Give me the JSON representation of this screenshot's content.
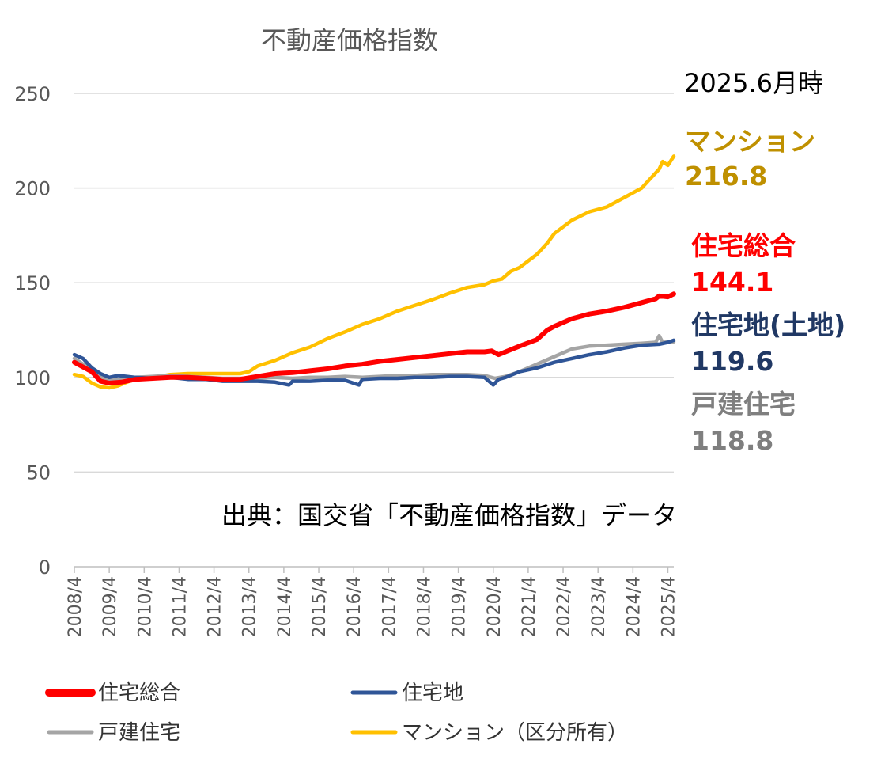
{
  "chart_data": {
    "type": "line",
    "title": "不動産価格指数",
    "ylim": [
      0,
      250
    ],
    "yticks": [
      0,
      50,
      100,
      150,
      200,
      250
    ],
    "x_tick_labels": [
      "2008/4",
      "2009/4",
      "2010/4",
      "2011/4",
      "2012/4",
      "2013/4",
      "2014/4",
      "2015/4",
      "2016/4",
      "2017/4",
      "2018/4",
      "2019/4",
      "2020/4",
      "2021/4",
      "2022/4",
      "2023/4",
      "2024/4",
      "2025/4"
    ],
    "x_range": [
      "2008/4",
      "2025/6"
    ],
    "grid": "horizontal",
    "series": [
      {
        "key": "sogo",
        "name": "住宅総合",
        "color": "#ff0000",
        "points": [
          [
            2008.25,
            108
          ],
          [
            2008.75,
            103
          ],
          [
            2009.0,
            98
          ],
          [
            2009.25,
            97
          ],
          [
            2009.6,
            97.5
          ],
          [
            2010.0,
            99
          ],
          [
            2010.5,
            99.5
          ],
          [
            2011.0,
            100
          ],
          [
            2011.5,
            100
          ],
          [
            2012.0,
            99.5
          ],
          [
            2012.5,
            99
          ],
          [
            2013.0,
            99
          ],
          [
            2013.5,
            100.5
          ],
          [
            2014.0,
            102
          ],
          [
            2014.5,
            102.5
          ],
          [
            2015.0,
            103.5
          ],
          [
            2015.5,
            104.5
          ],
          [
            2016.0,
            106
          ],
          [
            2016.5,
            107
          ],
          [
            2017.0,
            108.5
          ],
          [
            2017.5,
            109.5
          ],
          [
            2018.0,
            110.5
          ],
          [
            2018.5,
            111.5
          ],
          [
            2019.0,
            112.5
          ],
          [
            2019.5,
            113.5
          ],
          [
            2020.0,
            113.5
          ],
          [
            2020.2,
            114
          ],
          [
            2020.4,
            112
          ],
          [
            2020.6,
            113.5
          ],
          [
            2021.0,
            116.5
          ],
          [
            2021.5,
            120
          ],
          [
            2021.8,
            125
          ],
          [
            2022.0,
            127
          ],
          [
            2022.5,
            131
          ],
          [
            2023.0,
            133.5
          ],
          [
            2023.5,
            135
          ],
          [
            2024.0,
            137
          ],
          [
            2024.5,
            139.5
          ],
          [
            2024.9,
            141.5
          ],
          [
            2025.0,
            143
          ],
          [
            2025.25,
            142.5
          ],
          [
            2025.42,
            144.1
          ]
        ]
      },
      {
        "key": "tochi",
        "name": "住宅地",
        "color": "#2f5597",
        "points": [
          [
            2008.25,
            112
          ],
          [
            2008.5,
            110
          ],
          [
            2008.75,
            105
          ],
          [
            2009.0,
            102
          ],
          [
            2009.25,
            100
          ],
          [
            2009.5,
            101
          ],
          [
            2010.0,
            100
          ],
          [
            2010.5,
            99.5
          ],
          [
            2011.0,
            100
          ],
          [
            2011.5,
            99
          ],
          [
            2012.0,
            99
          ],
          [
            2012.5,
            98
          ],
          [
            2013.0,
            98
          ],
          [
            2013.5,
            98
          ],
          [
            2014.0,
            97.5
          ],
          [
            2014.4,
            96
          ],
          [
            2014.5,
            98
          ],
          [
            2015.0,
            98
          ],
          [
            2015.5,
            98.5
          ],
          [
            2016.0,
            98.5
          ],
          [
            2016.4,
            96
          ],
          [
            2016.5,
            99
          ],
          [
            2017.0,
            99.5
          ],
          [
            2017.5,
            99.5
          ],
          [
            2018.0,
            100
          ],
          [
            2018.5,
            100
          ],
          [
            2019.0,
            100.5
          ],
          [
            2019.5,
            100.5
          ],
          [
            2020.0,
            100
          ],
          [
            2020.25,
            96
          ],
          [
            2020.4,
            99
          ],
          [
            2020.6,
            100
          ],
          [
            2021.0,
            103
          ],
          [
            2021.5,
            105
          ],
          [
            2022.0,
            108
          ],
          [
            2022.5,
            110
          ],
          [
            2023.0,
            112
          ],
          [
            2023.5,
            113.5
          ],
          [
            2024.0,
            115.5
          ],
          [
            2024.5,
            117
          ],
          [
            2025.0,
            117.5
          ],
          [
            2025.25,
            118.5
          ],
          [
            2025.42,
            119.6
          ]
        ]
      },
      {
        "key": "kodate",
        "name": "戸建住宅",
        "color": "#a5a5a5",
        "points": [
          [
            2008.25,
            110
          ],
          [
            2008.75,
            104
          ],
          [
            2009.0,
            100
          ],
          [
            2009.25,
            99
          ],
          [
            2009.6,
            99
          ],
          [
            2010.0,
            100
          ],
          [
            2010.5,
            100.5
          ],
          [
            2011.0,
            101
          ],
          [
            2011.5,
            100.5
          ],
          [
            2012.0,
            100
          ],
          [
            2012.5,
            99.5
          ],
          [
            2013.0,
            99.5
          ],
          [
            2013.5,
            99.5
          ],
          [
            2014.0,
            100
          ],
          [
            2014.5,
            99.5
          ],
          [
            2015.0,
            100
          ],
          [
            2015.5,
            100
          ],
          [
            2016.0,
            100.5
          ],
          [
            2016.5,
            100
          ],
          [
            2017.0,
            100.5
          ],
          [
            2017.5,
            101
          ],
          [
            2018.0,
            101
          ],
          [
            2018.5,
            101.5
          ],
          [
            2019.0,
            101.5
          ],
          [
            2019.5,
            101.5
          ],
          [
            2020.0,
            101
          ],
          [
            2020.3,
            99.5
          ],
          [
            2020.6,
            100.5
          ],
          [
            2021.0,
            103
          ],
          [
            2021.5,
            107
          ],
          [
            2022.0,
            111
          ],
          [
            2022.5,
            115
          ],
          [
            2023.0,
            116.5
          ],
          [
            2023.5,
            117
          ],
          [
            2024.0,
            117.5
          ],
          [
            2024.5,
            118
          ],
          [
            2024.9,
            118.5
          ],
          [
            2025.0,
            122
          ],
          [
            2025.1,
            118.5
          ],
          [
            2025.42,
            118.8
          ]
        ]
      },
      {
        "key": "mansion",
        "name": "マンション（区分所有）",
        "color": "#ffc000",
        "points": [
          [
            2008.25,
            101.5
          ],
          [
            2008.5,
            100.5
          ],
          [
            2008.75,
            97
          ],
          [
            2009.0,
            95
          ],
          [
            2009.25,
            94.5
          ],
          [
            2009.5,
            95.5
          ],
          [
            2009.75,
            97.5
          ],
          [
            2010.0,
            99
          ],
          [
            2010.5,
            100
          ],
          [
            2011.0,
            101.5
          ],
          [
            2011.5,
            102
          ],
          [
            2012.0,
            102
          ],
          [
            2012.5,
            102
          ],
          [
            2013.0,
            102
          ],
          [
            2013.25,
            103
          ],
          [
            2013.5,
            106
          ],
          [
            2014.0,
            109
          ],
          [
            2014.5,
            113
          ],
          [
            2015.0,
            116
          ],
          [
            2015.5,
            120.5
          ],
          [
            2016.0,
            124
          ],
          [
            2016.5,
            128
          ],
          [
            2017.0,
            131
          ],
          [
            2017.5,
            135
          ],
          [
            2018.0,
            138
          ],
          [
            2018.5,
            141
          ],
          [
            2019.0,
            144.5
          ],
          [
            2019.5,
            147.5
          ],
          [
            2020.0,
            149
          ],
          [
            2020.25,
            151
          ],
          [
            2020.5,
            152
          ],
          [
            2020.75,
            156
          ],
          [
            2021.0,
            158
          ],
          [
            2021.5,
            165
          ],
          [
            2021.8,
            171
          ],
          [
            2022.0,
            176
          ],
          [
            2022.5,
            183
          ],
          [
            2023.0,
            187.5
          ],
          [
            2023.5,
            190
          ],
          [
            2024.0,
            195
          ],
          [
            2024.5,
            200
          ],
          [
            2024.75,
            205
          ],
          [
            2025.0,
            210
          ],
          [
            2025.1,
            214
          ],
          [
            2025.25,
            212
          ],
          [
            2025.42,
            216.8
          ]
        ]
      }
    ]
  },
  "annotations": {
    "as_of": "2025.6月時",
    "items": [
      {
        "key": "mansion",
        "label": "マンション",
        "value": "216.8",
        "color": "#bf9000"
      },
      {
        "key": "sogo",
        "label": "住宅総合",
        "value": "144.1",
        "color": "#ff0000"
      },
      {
        "key": "tochi",
        "label": "住宅地(土地)",
        "value": "119.6",
        "color": "#203864"
      },
      {
        "key": "kodate",
        "label": "戸建住宅",
        "value": "118.8",
        "color": "#7f7f7f"
      }
    ]
  },
  "source": "出典：国交省「不動産価格指数」データ",
  "legend": [
    {
      "key": "sogo",
      "label": "住宅総合",
      "color": "#ff0000"
    },
    {
      "key": "tochi",
      "label": "住宅地",
      "color": "#2f5597"
    },
    {
      "key": "kodate",
      "label": "戸建住宅",
      "color": "#a5a5a5"
    },
    {
      "key": "mansion",
      "label": "マンション（区分所有）",
      "color": "#ffc000"
    }
  ]
}
